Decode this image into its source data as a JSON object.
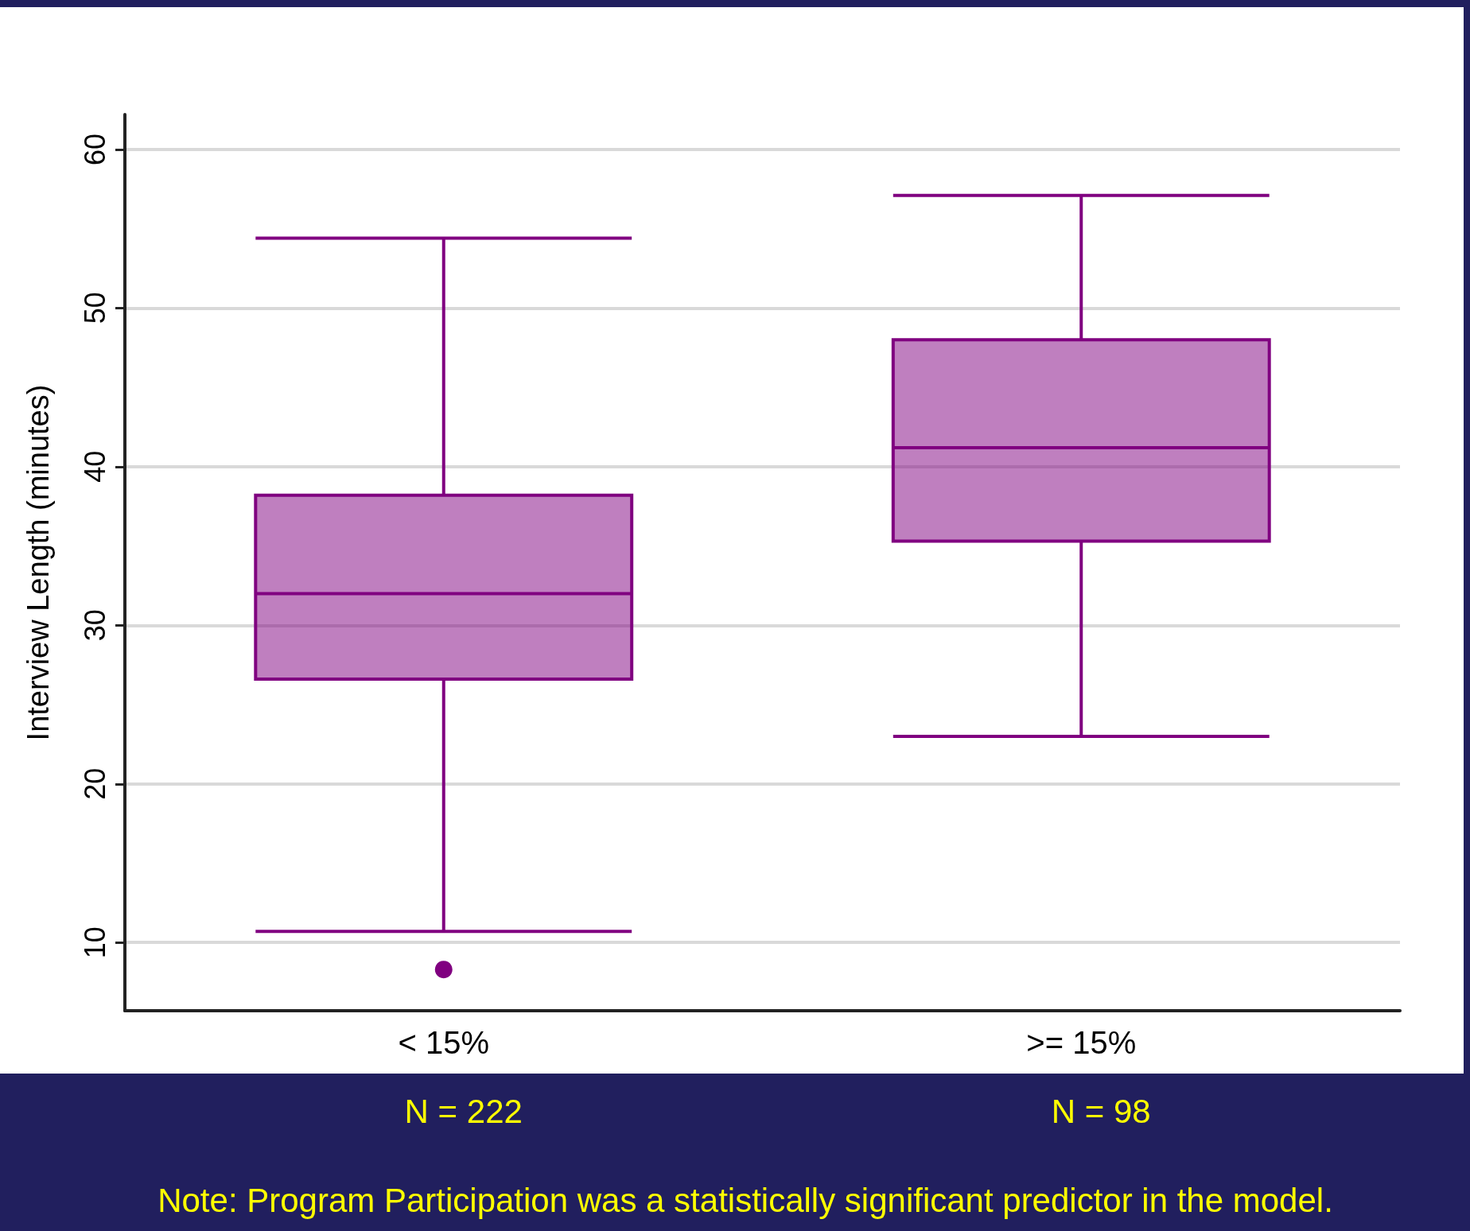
{
  "chart_data": {
    "type": "box",
    "ylabel": "Interview Length (minutes)",
    "categories": [
      "< 15%",
      ">= 15%"
    ],
    "series": [
      {
        "color": "#800080",
        "boxes": [
          {
            "low": 10.7,
            "q1": 26.6,
            "median": 32.0,
            "q3": 38.2,
            "high": 54.4,
            "outliers": [
              8.3
            ]
          },
          {
            "low": 23.0,
            "q1": 35.3,
            "median": 41.2,
            "q3": 48.0,
            "high": 57.1
          }
        ]
      }
    ],
    "ylim": [
      5.7,
      62.2
    ],
    "yticks": [
      10,
      20,
      30,
      40,
      50,
      60
    ],
    "grid": "y",
    "annotations": [
      "N = 222",
      "N = 98",
      "Note:  Program Participation was a statistically significant predictor in the model."
    ]
  }
}
